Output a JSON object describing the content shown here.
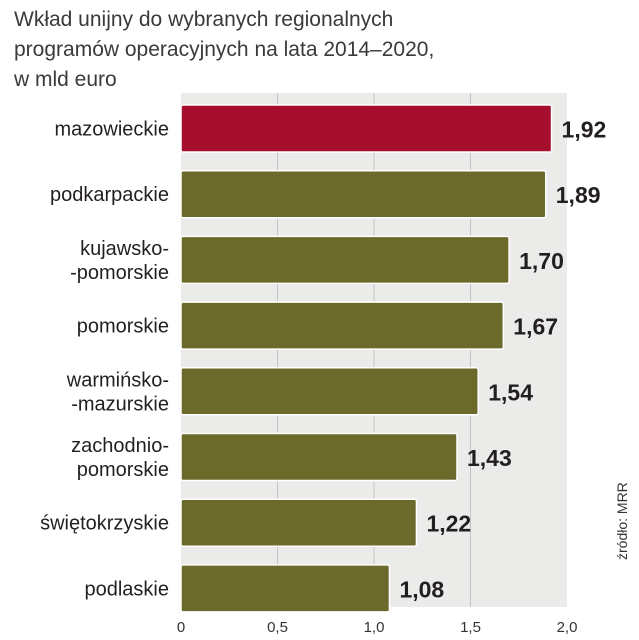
{
  "title_lines": [
    "Wkład unijny do wybranych regionalnych",
    "programów operacyjnych na lata 2014–2020,",
    "w mld euro"
  ],
  "source": "źródło: MRR",
  "colors": {
    "highlight": "#a50f2d",
    "bar": "#6b6a2b",
    "panel": "#ebebea",
    "grid": "#c4c4c4"
  },
  "chart_data": {
    "type": "bar",
    "orientation": "horizontal",
    "title": "Wkład unijny do wybranych regionalnych programów operacyjnych na lata 2014–2020, w mld euro",
    "unit": "mld euro",
    "xlim": [
      0,
      2.0
    ],
    "grid": true,
    "categories": [
      [
        "mazowieckie"
      ],
      [
        "podkarpackie"
      ],
      [
        "kujawsko-",
        "-pomorskie"
      ],
      [
        "pomorskie"
      ],
      [
        "warmińsko-",
        "-mazurskie"
      ],
      [
        "zachodnio-",
        "pomorskie"
      ],
      [
        "świętokrzyskie"
      ],
      [
        "podlaskie"
      ]
    ],
    "values": [
      1.92,
      1.89,
      1.7,
      1.67,
      1.54,
      1.43,
      1.22,
      1.08
    ],
    "value_labels": [
      "1,92",
      "1,89",
      "1,70",
      "1,67",
      "1,54",
      "1,43",
      "1,22",
      "1,08"
    ],
    "highlight_index": 0,
    "ticks": [
      {
        "value": 0,
        "label": "0"
      },
      {
        "value": 0.5,
        "label": "0,5"
      },
      {
        "value": 1.0,
        "label": "1,0"
      },
      {
        "value": 1.5,
        "label": "1,5"
      },
      {
        "value": 2.0,
        "label": "2,0"
      }
    ]
  }
}
